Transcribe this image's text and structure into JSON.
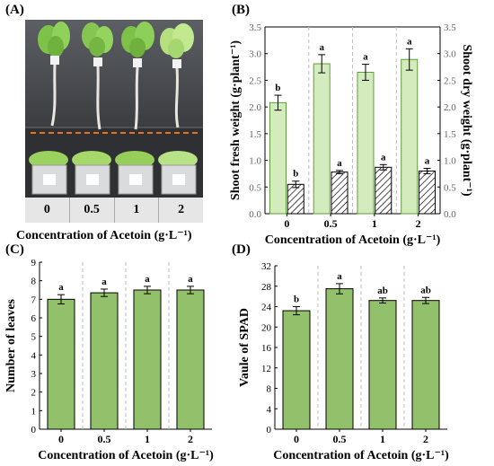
{
  "panels": {
    "a": {
      "label": "(A)",
      "samples": [
        "0",
        "0.5",
        "1",
        "2"
      ],
      "xlabel": "Concentration of Acetoin (g·L⁻¹)"
    },
    "b": {
      "label": "(B)"
    },
    "c": {
      "label": "(C)"
    },
    "d": {
      "label": "(D)"
    }
  },
  "colors": {
    "bar_fill": "#d4ebbe",
    "bar_stroke": "#5f9c3a",
    "bar_fill_cd": "#93c06a",
    "hatch": "#000000",
    "grid": "#bfbfbf",
    "dashed_line": "#e8701f",
    "photo_bg": "#46484c"
  },
  "chart_data": [
    {
      "panel": "B",
      "type": "bar",
      "categories": [
        "0",
        "0.5",
        "1",
        "2"
      ],
      "xlabel": "Concentration of Acetoin (g·L⁻¹)",
      "ylabel": "Shoot fresh weight (g·plant⁻¹)",
      "ylabel_right": "Shoot dry weight (g·plant⁻¹)",
      "ylim": [
        0,
        3.5
      ],
      "ylim_right": [
        0,
        3.5
      ],
      "yticks": [
        "0.0",
        "0.5",
        "1.0",
        "1.5",
        "2.0",
        "2.5",
        "3.0",
        "3.5"
      ],
      "series": [
        {
          "values": [
            2.08,
            2.81,
            2.65,
            2.89
          ],
          "errors": [
            0.14,
            0.17,
            0.15,
            0.2
          ],
          "letters": [
            "b",
            "a",
            "a",
            "a"
          ],
          "style": "solid",
          "axis": "left"
        },
        {
          "values": [
            0.55,
            0.78,
            0.87,
            0.8
          ],
          "errors": [
            0.06,
            0.03,
            0.05,
            0.05
          ],
          "letters": [
            "b",
            "a",
            "a",
            "a"
          ],
          "style": "hatched",
          "axis": "right"
        }
      ]
    },
    {
      "panel": "C",
      "type": "bar",
      "categories": [
        "0",
        "0.5",
        "1",
        "2"
      ],
      "xlabel": "Concentration of Acetoin (g·L⁻¹)",
      "ylabel": "Number of leaves",
      "ylim": [
        0,
        9
      ],
      "yticks": [
        "0",
        "1",
        "2",
        "3",
        "4",
        "5",
        "6",
        "7",
        "8",
        "9"
      ],
      "values": [
        7.0,
        7.35,
        7.5,
        7.5
      ],
      "errors": [
        0.25,
        0.2,
        0.2,
        0.2
      ],
      "letters": [
        "a",
        "a",
        "a",
        "a"
      ]
    },
    {
      "panel": "D",
      "type": "bar",
      "categories": [
        "0",
        "0.5",
        "1",
        "2"
      ],
      "xlabel": "Concentration of Acetoin (g·L⁻¹)",
      "ylabel": "Vaule of SPAD",
      "ylim": [
        0,
        32
      ],
      "yticks": [
        "0",
        "4",
        "8",
        "12",
        "16",
        "20",
        "24",
        "28",
        "32"
      ],
      "values": [
        23.2,
        27.5,
        25.2,
        25.2
      ],
      "errors": [
        0.8,
        1.0,
        0.5,
        0.6
      ],
      "letters": [
        "b",
        "a",
        "ab",
        "ab"
      ]
    }
  ]
}
